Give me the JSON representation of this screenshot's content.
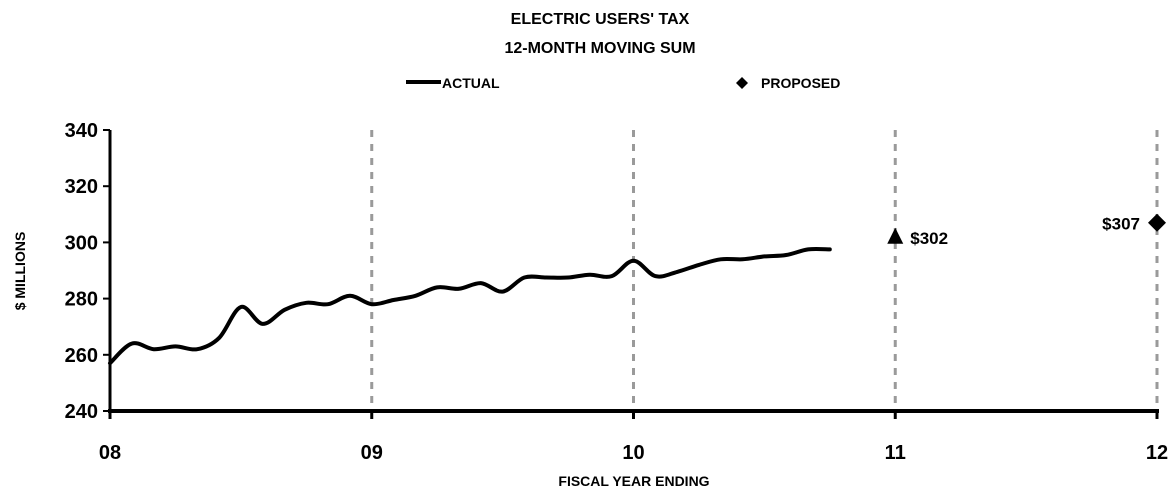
{
  "chart_data": {
    "type": "line",
    "title": "ELECTRIC USERS' TAX",
    "subtitle": "12-MONTH MOVING SUM",
    "xlabel": "FISCAL YEAR ENDING",
    "ylabel": "$ MILLIONS",
    "xlim": [
      8,
      12
    ],
    "ylim": [
      240,
      340
    ],
    "x_ticks": [
      8,
      9,
      10,
      11,
      12
    ],
    "x_tick_labels": [
      "08",
      "09",
      "10",
      "11",
      "12"
    ],
    "y_ticks": [
      240,
      260,
      280,
      300,
      320,
      340
    ],
    "y_tick_labels": [
      "240",
      "260",
      "280",
      "300",
      "320",
      "340"
    ],
    "grid": "vertical dashed at year ticks",
    "legend_placement": "top-center",
    "series": [
      {
        "name": "ACTUAL",
        "marker": "line",
        "x": [
          8.0,
          8.083,
          8.167,
          8.25,
          8.333,
          8.417,
          8.5,
          8.583,
          8.667,
          8.75,
          8.833,
          8.917,
          9.0,
          9.083,
          9.167,
          9.25,
          9.333,
          9.417,
          9.5,
          9.583,
          9.667,
          9.75,
          9.833,
          9.917,
          10.0,
          10.083,
          10.167,
          10.25,
          10.333,
          10.417,
          10.5,
          10.583,
          10.667,
          10.75
        ],
        "values": [
          257,
          264,
          262,
          263,
          262,
          266,
          277,
          271,
          276,
          278.5,
          278,
          281,
          278,
          279.5,
          281,
          284,
          283.5,
          285.5,
          282.5,
          287.5,
          287.5,
          287.5,
          288.5,
          288,
          293.5,
          288,
          289.5,
          292,
          294,
          294,
          295,
          295.5,
          297.5,
          297.5
        ]
      },
      {
        "name": "PROPOSED",
        "marker": "diamond",
        "x": [
          12
        ],
        "values": [
          307
        ]
      }
    ],
    "annotations": [
      {
        "x": 11,
        "y": 302,
        "marker": "triangle",
        "label": "$302",
        "label_side": "right"
      },
      {
        "x": 12,
        "y": 307,
        "marker": "diamond",
        "label": "$307",
        "label_side": "left"
      }
    ]
  }
}
